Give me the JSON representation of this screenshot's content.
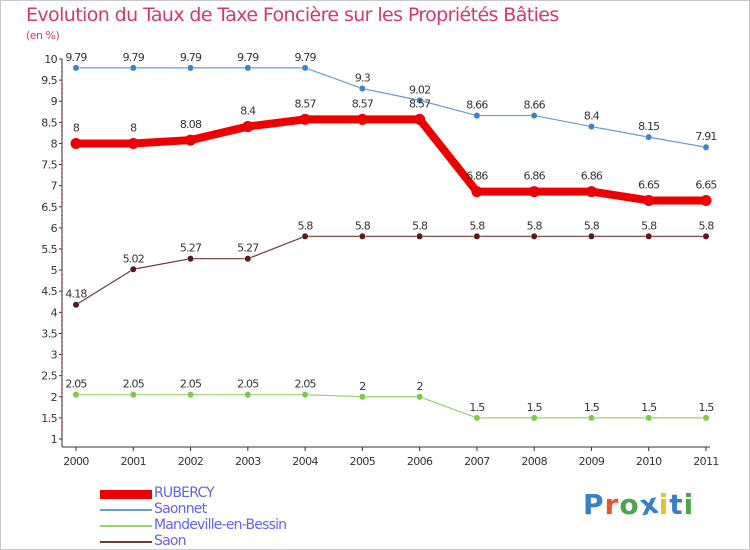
{
  "header": {
    "title": "Evolution du Taux de Taxe Foncière sur les Propriétés Bâties",
    "subtitle": "(en %)"
  },
  "logo": {
    "text": "Proxiti",
    "letter_colors": [
      "#3a7fc8",
      "#e8552a",
      "#4aa64a",
      "#3a7fc8",
      "#e8c02a",
      "#3a7fc8",
      "#4aa64a"
    ]
  },
  "chart_data": {
    "type": "line",
    "x": [
      "2000",
      "2001",
      "2002",
      "2003",
      "2004",
      "2005",
      "2006",
      "2007",
      "2008",
      "2009",
      "2010",
      "2011"
    ],
    "ylim": [
      1,
      10
    ],
    "yticks": [
      "1",
      "1.5",
      "2",
      "2.5",
      "3",
      "3.5",
      "4",
      "4.5",
      "5",
      "5.5",
      "6",
      "6.5",
      "7",
      "7.5",
      "8",
      "8.5",
      "9",
      "9.5",
      "10"
    ],
    "grid": false,
    "legend_position": "bottom-left",
    "series": [
      {
        "name": "Saonnet",
        "color": "#6a9bd0",
        "marker_color": "#3c84c6",
        "values": [
          9.79,
          9.79,
          9.79,
          9.79,
          9.79,
          9.3,
          9.02,
          8.66,
          8.66,
          8.4,
          8.15,
          7.91
        ],
        "labels": [
          "9.79",
          "9.79",
          "9.79",
          "9.79",
          "9.79",
          "9.3",
          "9.02",
          "8.66",
          "8.66",
          "8.4",
          "8.15",
          "7.91"
        ]
      },
      {
        "name": "Saon",
        "color": "#6e3a3a",
        "marker_color": "#5a1a1a",
        "values": [
          4.18,
          5.02,
          5.27,
          5.27,
          5.8,
          5.8,
          5.8,
          5.8,
          5.8,
          5.8,
          5.8,
          5.8
        ],
        "labels": [
          "4.18",
          "5.02",
          "5.27",
          "5.27",
          "5.8",
          "5.8",
          "5.8",
          "5.8",
          "5.8",
          "5.8",
          "5.8",
          "5.8"
        ]
      },
      {
        "name": "Mandeville-en-Bessin",
        "color": "#99d36a",
        "marker_color": "#7ec84a",
        "values": [
          2.05,
          2.05,
          2.05,
          2.05,
          2.05,
          2,
          2,
          1.5,
          1.5,
          1.5,
          1.5,
          1.5
        ],
        "labels": [
          "2.05",
          "2.05",
          "2.05",
          "2.05",
          "2.05",
          "2",
          "2",
          "1.5",
          "1.5",
          "1.5",
          "1.5",
          "1.5"
        ]
      },
      {
        "name": "RUBERCY",
        "color": "#ee0000",
        "marker_color": "#ee0000",
        "values": [
          8,
          8,
          8.08,
          8.4,
          8.57,
          8.57,
          8.57,
          6.86,
          6.86,
          6.86,
          6.65,
          6.65
        ],
        "labels": [
          "8",
          "8",
          "8.08",
          "8.4",
          "8.57",
          "8.57",
          "8.57",
          "6.86",
          "6.86",
          "6.86",
          "6.65",
          "6.65"
        ]
      }
    ],
    "legend_order": [
      "RUBERCY",
      "Saonnet",
      "Mandeville-en-Bessin",
      "Saon"
    ]
  }
}
